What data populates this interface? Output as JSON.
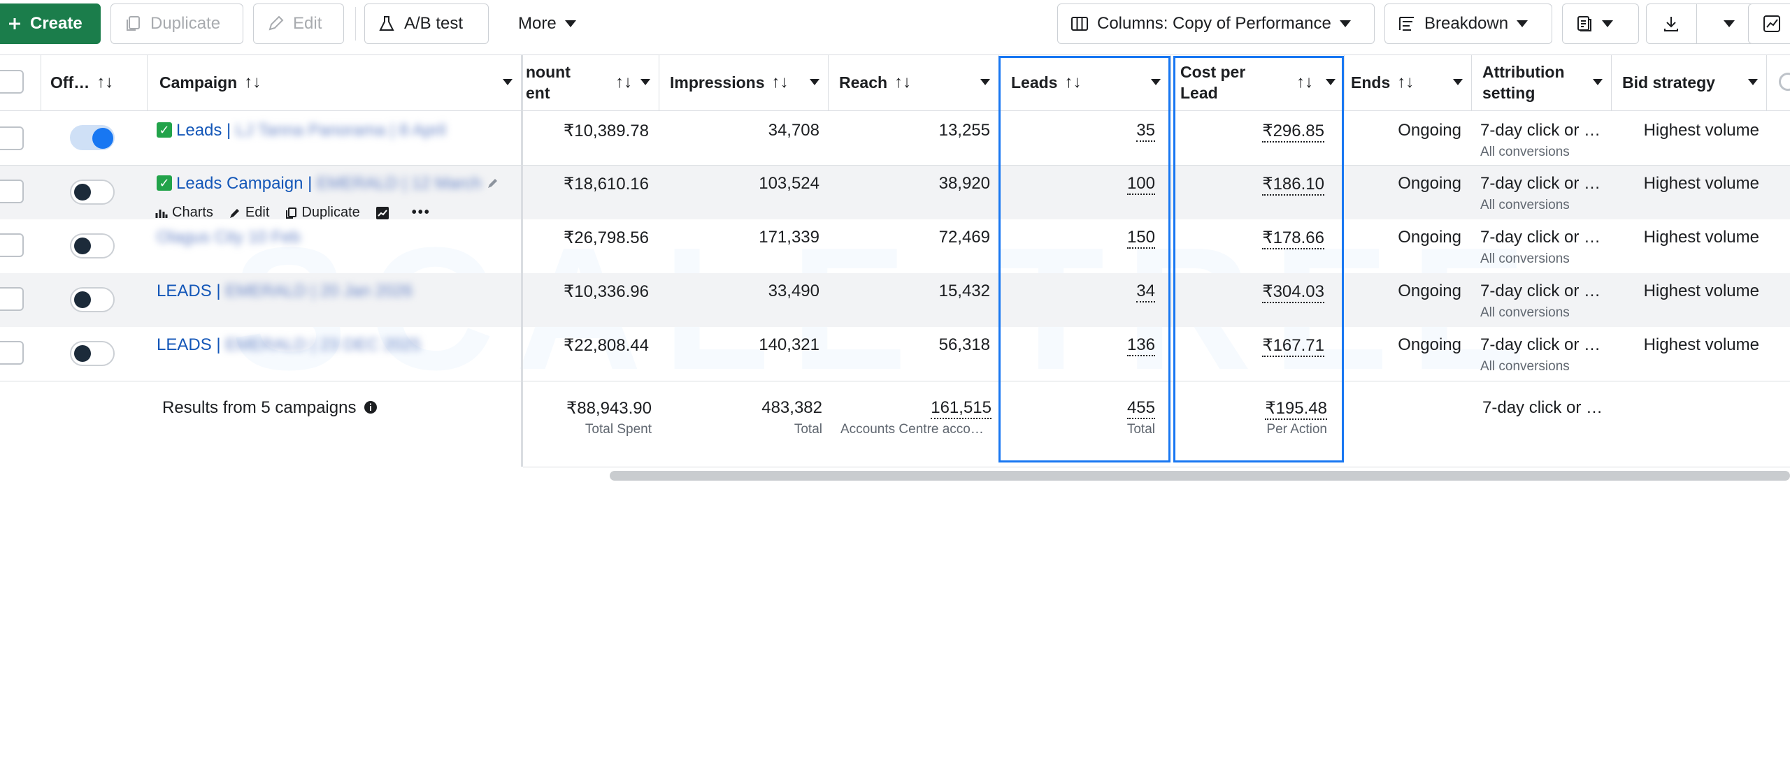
{
  "toolbar": {
    "create": "Create",
    "duplicate": "Duplicate",
    "edit": "Edit",
    "ab_test": "A/B test",
    "more": "More",
    "columns": "Columns: Copy of Performance",
    "breakdown": "Breakdown"
  },
  "columns": {
    "off": "Off…",
    "campaign": "Campaign",
    "amount_spent_l1": "nount",
    "amount_spent_l2": "ent",
    "impressions": "Impressions",
    "reach": "Reach",
    "leads": "Leads",
    "cpl_l1": "Cost per",
    "cpl_l2": "Lead",
    "ends": "Ends",
    "attr_l1": "Attribution",
    "attr_l2": "setting",
    "bid": "Bid strategy"
  },
  "rows": [
    {
      "name_prefix": "Leads |",
      "name_rest": "LJ Tanna Panorama | 8 April",
      "checked": true,
      "on": true,
      "spent": "₹10,389.78",
      "impressions": "34,708",
      "reach": "13,255",
      "leads": "35",
      "cpl": "₹296.85",
      "ends": "Ongoing",
      "attribution": "7-day click or …",
      "attribution_sub": "All conversions",
      "bid": "Highest volume"
    },
    {
      "name_prefix": "Leads Campaign |",
      "name_rest": "EMERALD | 12 March",
      "checked": true,
      "on": false,
      "spent": "₹18,610.16",
      "impressions": "103,524",
      "reach": "38,920",
      "leads": "100",
      "cpl": "₹186.10",
      "ends": "Ongoing",
      "attribution": "7-day click or …",
      "attribution_sub": "All conversions",
      "bid": "Highest volume"
    },
    {
      "name_prefix": "",
      "name_rest": "Olagus City 10 Feb",
      "checked": false,
      "on": false,
      "spent": "₹26,798.56",
      "impressions": "171,339",
      "reach": "72,469",
      "leads": "150",
      "cpl": "₹178.66",
      "ends": "Ongoing",
      "attribution": "7-day click or …",
      "attribution_sub": "All conversions",
      "bid": "Highest volume"
    },
    {
      "name_prefix": "LEADS |",
      "name_rest": "EMERALD | 20 Jan 2026",
      "checked": false,
      "on": false,
      "spent": "₹10,336.96",
      "impressions": "33,490",
      "reach": "15,432",
      "leads": "34",
      "cpl": "₹304.03",
      "ends": "Ongoing",
      "attribution": "7-day click or …",
      "attribution_sub": "All conversions",
      "bid": "Highest volume"
    },
    {
      "name_prefix": "LEADS |",
      "name_rest": "EMERALD | 23 DEC 2025",
      "checked": false,
      "on": false,
      "spent": "₹22,808.44",
      "impressions": "140,321",
      "reach": "56,318",
      "leads": "136",
      "cpl": "₹167.71",
      "ends": "Ongoing",
      "attribution": "7-day click or …",
      "attribution_sub": "All conversions",
      "bid": "Highest volume"
    }
  ],
  "row_actions": {
    "charts": "Charts",
    "edit": "Edit",
    "duplicate": "Duplicate",
    "more": "•••"
  },
  "summary": {
    "label": "Results from 5 campaigns",
    "spent": "₹88,943.90",
    "spent_sub": "Total Spent",
    "impressions": "483,382",
    "impressions_sub": "Total",
    "reach": "161,515",
    "reach_sub": "Accounts Centre acco…",
    "leads": "455",
    "leads_sub": "Total",
    "cpl": "₹195.48",
    "cpl_sub": "Per Action",
    "attribution": "7-day click or …"
  },
  "watermark": "SCALE TREE",
  "colors": {
    "primary_green": "#1b7d4b",
    "link_blue": "#1457b8",
    "highlight_blue": "#1877f2"
  }
}
